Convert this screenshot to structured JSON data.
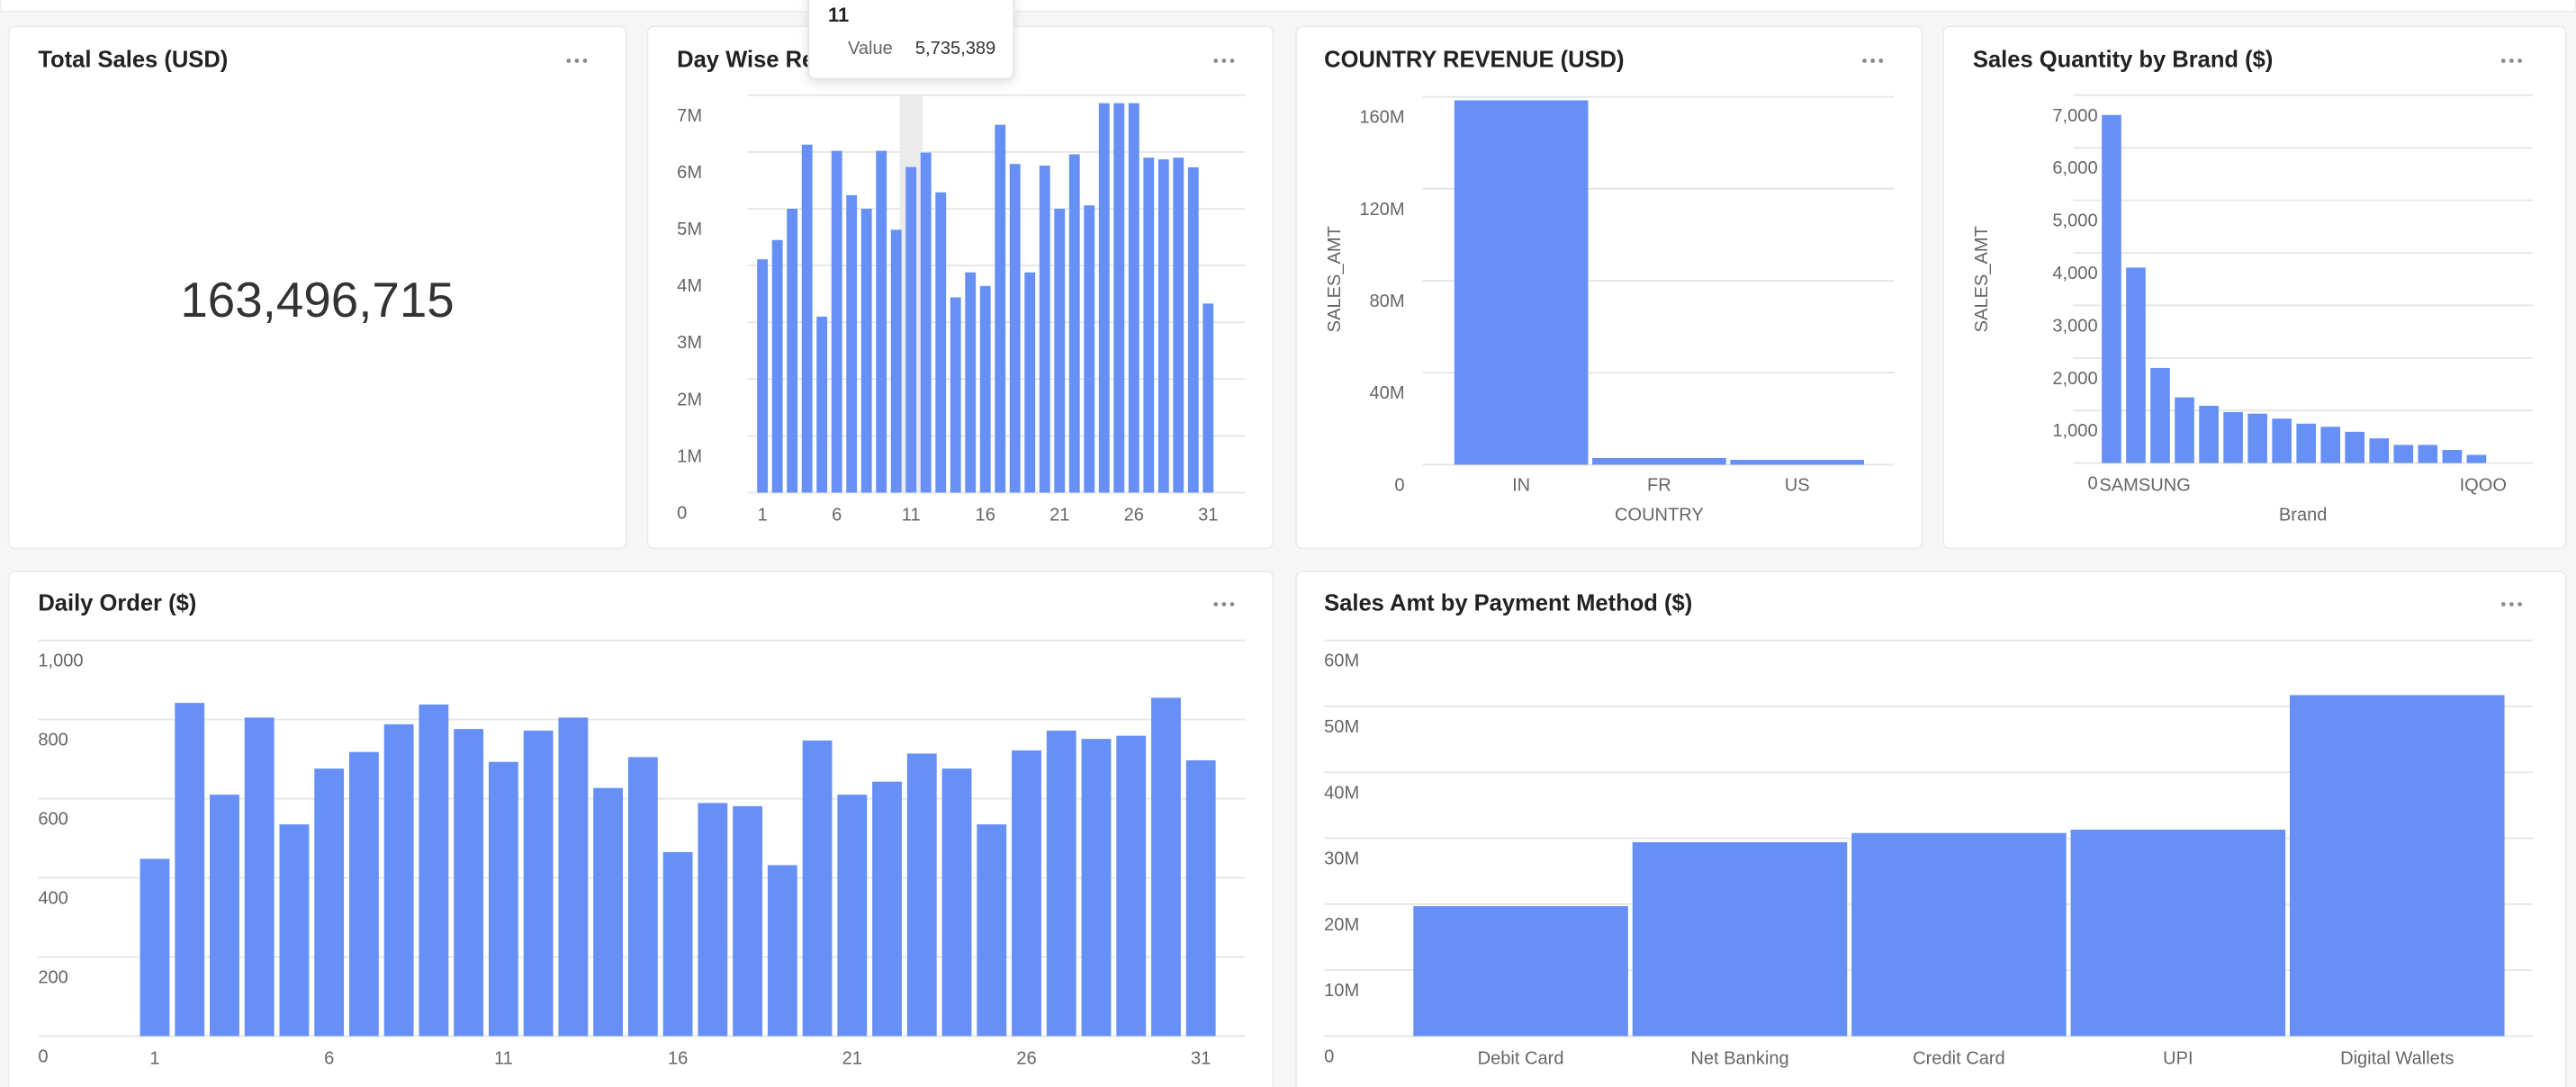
{
  "kpi": {
    "title": "Total Sales (USD)",
    "value": "163,496,715"
  },
  "chart_data": [
    {
      "type": "bar",
      "title": "Day Wise Re",
      "color": "#6690f6",
      "x": [
        1,
        2,
        3,
        4,
        5,
        6,
        7,
        8,
        9,
        10,
        11,
        12,
        13,
        14,
        15,
        16,
        17,
        18,
        19,
        20,
        21,
        22,
        23,
        24,
        25,
        26,
        27,
        28,
        29,
        30,
        31
      ],
      "values": [
        4110000,
        4450000,
        5000000,
        6130000,
        3100000,
        6020000,
        5240000,
        5000000,
        6020000,
        4630000,
        5735389,
        5990000,
        5290000,
        3440000,
        3880000,
        3640000,
        6480000,
        5790000,
        3880000,
        5760000,
        5000000,
        5960000,
        5060000,
        6860000,
        6860000,
        6860000,
        5900000,
        5870000,
        5900000,
        5730000,
        3330000
      ],
      "xlim": [
        0,
        33.5
      ],
      "xticks": [
        1,
        6,
        11,
        16,
        21,
        26,
        31
      ],
      "ylim": [
        0,
        7000000
      ],
      "yticks": [
        0,
        {
          "value": 1000000,
          "label": "1M"
        },
        {
          "value": 2000000,
          "label": "2M"
        },
        {
          "value": 3000000,
          "label": "3M"
        },
        {
          "value": 4000000,
          "label": "4M"
        },
        {
          "value": 5000000,
          "label": "5M"
        },
        {
          "value": 6000000,
          "label": "6M"
        },
        {
          "value": 7000000,
          "label": "7M"
        }
      ],
      "grid": true,
      "tooltip": {
        "x": "11",
        "label": "Value",
        "value_label": "5,735,389"
      }
    },
    {
      "type": "bar",
      "title": "COUNTRY REVENUE (USD)",
      "color": "#6690f6",
      "categories": [
        "IN",
        "FR",
        "US"
      ],
      "values": [
        158500000,
        2900000,
        2100000
      ],
      "x_label": "COUNTRY",
      "y_label": "SALES_AMT",
      "ylim": [
        0,
        160000000
      ],
      "yticks": [
        0,
        {
          "value": 40000000,
          "label": "40M"
        },
        {
          "value": 80000000,
          "label": "80M"
        },
        {
          "value": 120000000,
          "label": "120M"
        },
        {
          "value": 160000000,
          "label": "160M"
        }
      ],
      "grid": true
    },
    {
      "type": "bar",
      "title": "Sales Quantity by Brand ($)",
      "color": "#6690f6",
      "categories": [
        "SAMSUNG",
        null,
        null,
        null,
        null,
        null,
        null,
        null,
        null,
        null,
        null,
        null,
        null,
        null,
        null,
        "IQOO"
      ],
      "values": [
        6625,
        3720,
        1810,
        1250,
        1090,
        970,
        940,
        845,
        750,
        690,
        595,
        470,
        345,
        345,
        250,
        155
      ],
      "x_label": "Brand",
      "y_label": "SALES_AMT",
      "ylim": [
        0,
        7000
      ],
      "yticks": [
        0,
        {
          "value": 1000,
          "label": "1,000"
        },
        {
          "value": 2000,
          "label": "2,000"
        },
        {
          "value": 3000,
          "label": "3,000"
        },
        {
          "value": 4000,
          "label": "4,000"
        },
        {
          "value": 5000,
          "label": "5,000"
        },
        {
          "value": 6000,
          "label": "6,000"
        },
        {
          "value": 7000,
          "label": "7,000"
        }
      ],
      "grid": true
    },
    {
      "type": "bar",
      "title": "Daily Order ($)",
      "color": "#6690f6",
      "x": [
        1,
        2,
        3,
        4,
        5,
        6,
        7,
        8,
        9,
        10,
        11,
        12,
        13,
        14,
        15,
        16,
        17,
        18,
        19,
        20,
        21,
        22,
        23,
        24,
        25,
        26,
        27,
        28,
        29,
        30,
        31
      ],
      "values": [
        448,
        842,
        610,
        805,
        535,
        676,
        718,
        788,
        838,
        776,
        693,
        772,
        805,
        627,
        705,
        465,
        589,
        581,
        432,
        747,
        610,
        643,
        714,
        676,
        535,
        722,
        772,
        751,
        759,
        855,
        697
      ],
      "xlim": [
        0,
        32.5
      ],
      "xticks": [
        1,
        6,
        11,
        16,
        21,
        26,
        31
      ],
      "ylim": [
        0,
        1000
      ],
      "yticks": [
        0,
        200,
        400,
        600,
        800,
        {
          "value": 1000,
          "label": "1,000"
        }
      ],
      "grid": true
    },
    {
      "type": "bar",
      "title": "Sales Amt by Payment Method ($)",
      "color": "#6690f6",
      "categories": [
        "Debit Card",
        "Net Banking",
        "Credit Card",
        "UPI",
        "Digital Wallets"
      ],
      "values": [
        19700000,
        29400000,
        30800000,
        31300000,
        51700000
      ],
      "ylim": [
        0,
        60000000
      ],
      "yticks": [
        0,
        {
          "value": 10000000,
          "label": "10M"
        },
        {
          "value": 20000000,
          "label": "20M"
        },
        {
          "value": 30000000,
          "label": "30M"
        },
        {
          "value": 40000000,
          "label": "40M"
        },
        {
          "value": 50000000,
          "label": "50M"
        },
        {
          "value": 60000000,
          "label": "60M"
        }
      ],
      "grid": true
    }
  ]
}
